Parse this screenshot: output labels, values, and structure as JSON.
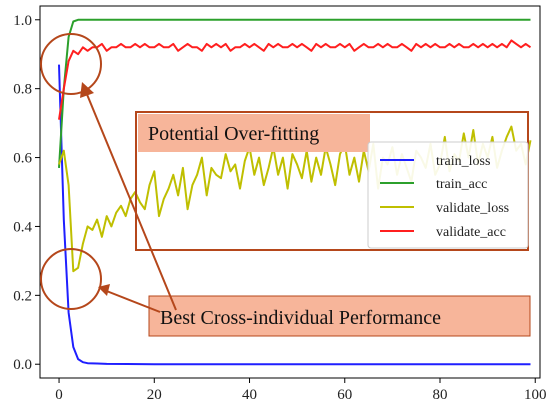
{
  "chart_data": {
    "type": "line",
    "xlim": [
      -4,
      101
    ],
    "ylim": [
      -0.04,
      1.04
    ],
    "x_ticks": [
      0,
      20,
      40,
      60,
      80,
      100
    ],
    "x_tick_labels": [
      "0",
      "20",
      "40",
      "60",
      "80",
      "100"
    ],
    "y_ticks": [
      0.0,
      0.2,
      0.4,
      0.6,
      0.8,
      1.0
    ],
    "y_tick_labels": [
      "0.0",
      "0.2",
      "0.4",
      "0.6",
      "0.8",
      "1.0"
    ],
    "grid": false,
    "legend_position": "right-center",
    "series": [
      {
        "name": "train_loss",
        "color": "#1f1fff",
        "x": [
          0,
          1,
          2,
          3,
          4,
          5,
          6,
          8,
          10,
          20,
          40,
          60,
          80,
          99
        ],
        "y": [
          0.87,
          0.42,
          0.15,
          0.05,
          0.015,
          0.006,
          0.003,
          0.002,
          0.001,
          0.0,
          0.0,
          0.0,
          0.0,
          0.0
        ]
      },
      {
        "name": "train_acc",
        "color": "#2ca02c",
        "x": [
          0,
          1,
          2,
          3,
          4,
          6,
          10,
          20,
          40,
          60,
          80,
          99
        ],
        "y": [
          0.57,
          0.8,
          0.95,
          0.995,
          1.0,
          1.0,
          1.0,
          1.0,
          1.0,
          1.0,
          1.0,
          1.0
        ]
      },
      {
        "name": "validate_loss",
        "color": "#bfbf00",
        "x": [
          0,
          1,
          2,
          3,
          4,
          5,
          6,
          7,
          8,
          9,
          10,
          11,
          12,
          13,
          14,
          15,
          16,
          17,
          18,
          19,
          20,
          21,
          22,
          23,
          24,
          25,
          26,
          27,
          28,
          29,
          30,
          31,
          32,
          33,
          34,
          35,
          36,
          37,
          38,
          39,
          40,
          41,
          42,
          43,
          44,
          45,
          46,
          47,
          48,
          49,
          50,
          51,
          52,
          53,
          54,
          55,
          56,
          57,
          58,
          59,
          60,
          61,
          62,
          63,
          64,
          65,
          66,
          67,
          68,
          69,
          70,
          71,
          72,
          73,
          74,
          75,
          76,
          77,
          78,
          79,
          80,
          81,
          82,
          83,
          84,
          85,
          86,
          87,
          88,
          89,
          90,
          91,
          92,
          93,
          94,
          95,
          96,
          97,
          98,
          99
        ],
        "y": [
          0.58,
          0.62,
          0.52,
          0.27,
          0.28,
          0.35,
          0.4,
          0.39,
          0.42,
          0.37,
          0.43,
          0.4,
          0.44,
          0.46,
          0.43,
          0.48,
          0.5,
          0.47,
          0.45,
          0.52,
          0.56,
          0.43,
          0.48,
          0.51,
          0.55,
          0.49,
          0.57,
          0.45,
          0.52,
          0.55,
          0.6,
          0.49,
          0.57,
          0.55,
          0.54,
          0.61,
          0.56,
          0.58,
          0.51,
          0.59,
          0.63,
          0.55,
          0.6,
          0.52,
          0.57,
          0.63,
          0.55,
          0.6,
          0.51,
          0.61,
          0.58,
          0.54,
          0.62,
          0.53,
          0.6,
          0.55,
          0.63,
          0.58,
          0.52,
          0.61,
          0.64,
          0.55,
          0.6,
          0.53,
          0.62,
          0.56,
          0.64,
          0.51,
          0.6,
          0.58,
          0.63,
          0.55,
          0.61,
          0.57,
          0.53,
          0.62,
          0.6,
          0.57,
          0.64,
          0.55,
          0.58,
          0.66,
          0.56,
          0.61,
          0.59,
          0.67,
          0.6,
          0.68,
          0.58,
          0.64,
          0.6,
          0.66,
          0.57,
          0.62,
          0.66,
          0.69,
          0.62,
          0.64,
          0.58,
          0.65
        ]
      },
      {
        "name": "validate_acc",
        "color": "#ff1f1f",
        "x": [
          0,
          1,
          2,
          3,
          4,
          5,
          6,
          7,
          8,
          9,
          10,
          11,
          12,
          13,
          14,
          15,
          16,
          17,
          18,
          19,
          20,
          21,
          22,
          23,
          24,
          25,
          26,
          27,
          28,
          29,
          30,
          31,
          32,
          33,
          34,
          35,
          36,
          37,
          38,
          39,
          40,
          41,
          42,
          43,
          44,
          45,
          46,
          47,
          48,
          49,
          50,
          51,
          52,
          53,
          54,
          55,
          56,
          57,
          58,
          59,
          60,
          61,
          62,
          63,
          64,
          65,
          66,
          67,
          68,
          69,
          70,
          71,
          72,
          73,
          74,
          75,
          76,
          77,
          78,
          79,
          80,
          81,
          82,
          83,
          84,
          85,
          86,
          87,
          88,
          89,
          90,
          91,
          92,
          93,
          94,
          95,
          96,
          97,
          98,
          99
        ],
        "y": [
          0.71,
          0.8,
          0.88,
          0.91,
          0.9,
          0.92,
          0.91,
          0.92,
          0.92,
          0.93,
          0.91,
          0.92,
          0.92,
          0.93,
          0.92,
          0.92,
          0.93,
          0.92,
          0.93,
          0.92,
          0.92,
          0.93,
          0.92,
          0.92,
          0.93,
          0.91,
          0.92,
          0.93,
          0.92,
          0.92,
          0.91,
          0.93,
          0.92,
          0.93,
          0.92,
          0.93,
          0.91,
          0.92,
          0.92,
          0.93,
          0.92,
          0.93,
          0.92,
          0.91,
          0.93,
          0.92,
          0.93,
          0.92,
          0.92,
          0.93,
          0.92,
          0.93,
          0.92,
          0.91,
          0.93,
          0.92,
          0.93,
          0.92,
          0.92,
          0.93,
          0.92,
          0.93,
          0.91,
          0.92,
          0.93,
          0.92,
          0.92,
          0.93,
          0.92,
          0.93,
          0.92,
          0.92,
          0.93,
          0.92,
          0.91,
          0.93,
          0.92,
          0.93,
          0.92,
          0.93,
          0.92,
          0.92,
          0.93,
          0.92,
          0.93,
          0.92,
          0.92,
          0.93,
          0.92,
          0.93,
          0.92,
          0.93,
          0.92,
          0.93,
          0.92,
          0.94,
          0.93,
          0.92,
          0.93,
          0.92
        ]
      }
    ],
    "annotations": [
      {
        "text": "Potential Over-fitting",
        "color": "#f7b59a",
        "border_color": "#b5471b"
      },
      {
        "text": "Best Cross-individual Performance",
        "color": "#f7b59a",
        "border_color": "#b5471b"
      }
    ],
    "arrow_color": "#b5471b"
  }
}
